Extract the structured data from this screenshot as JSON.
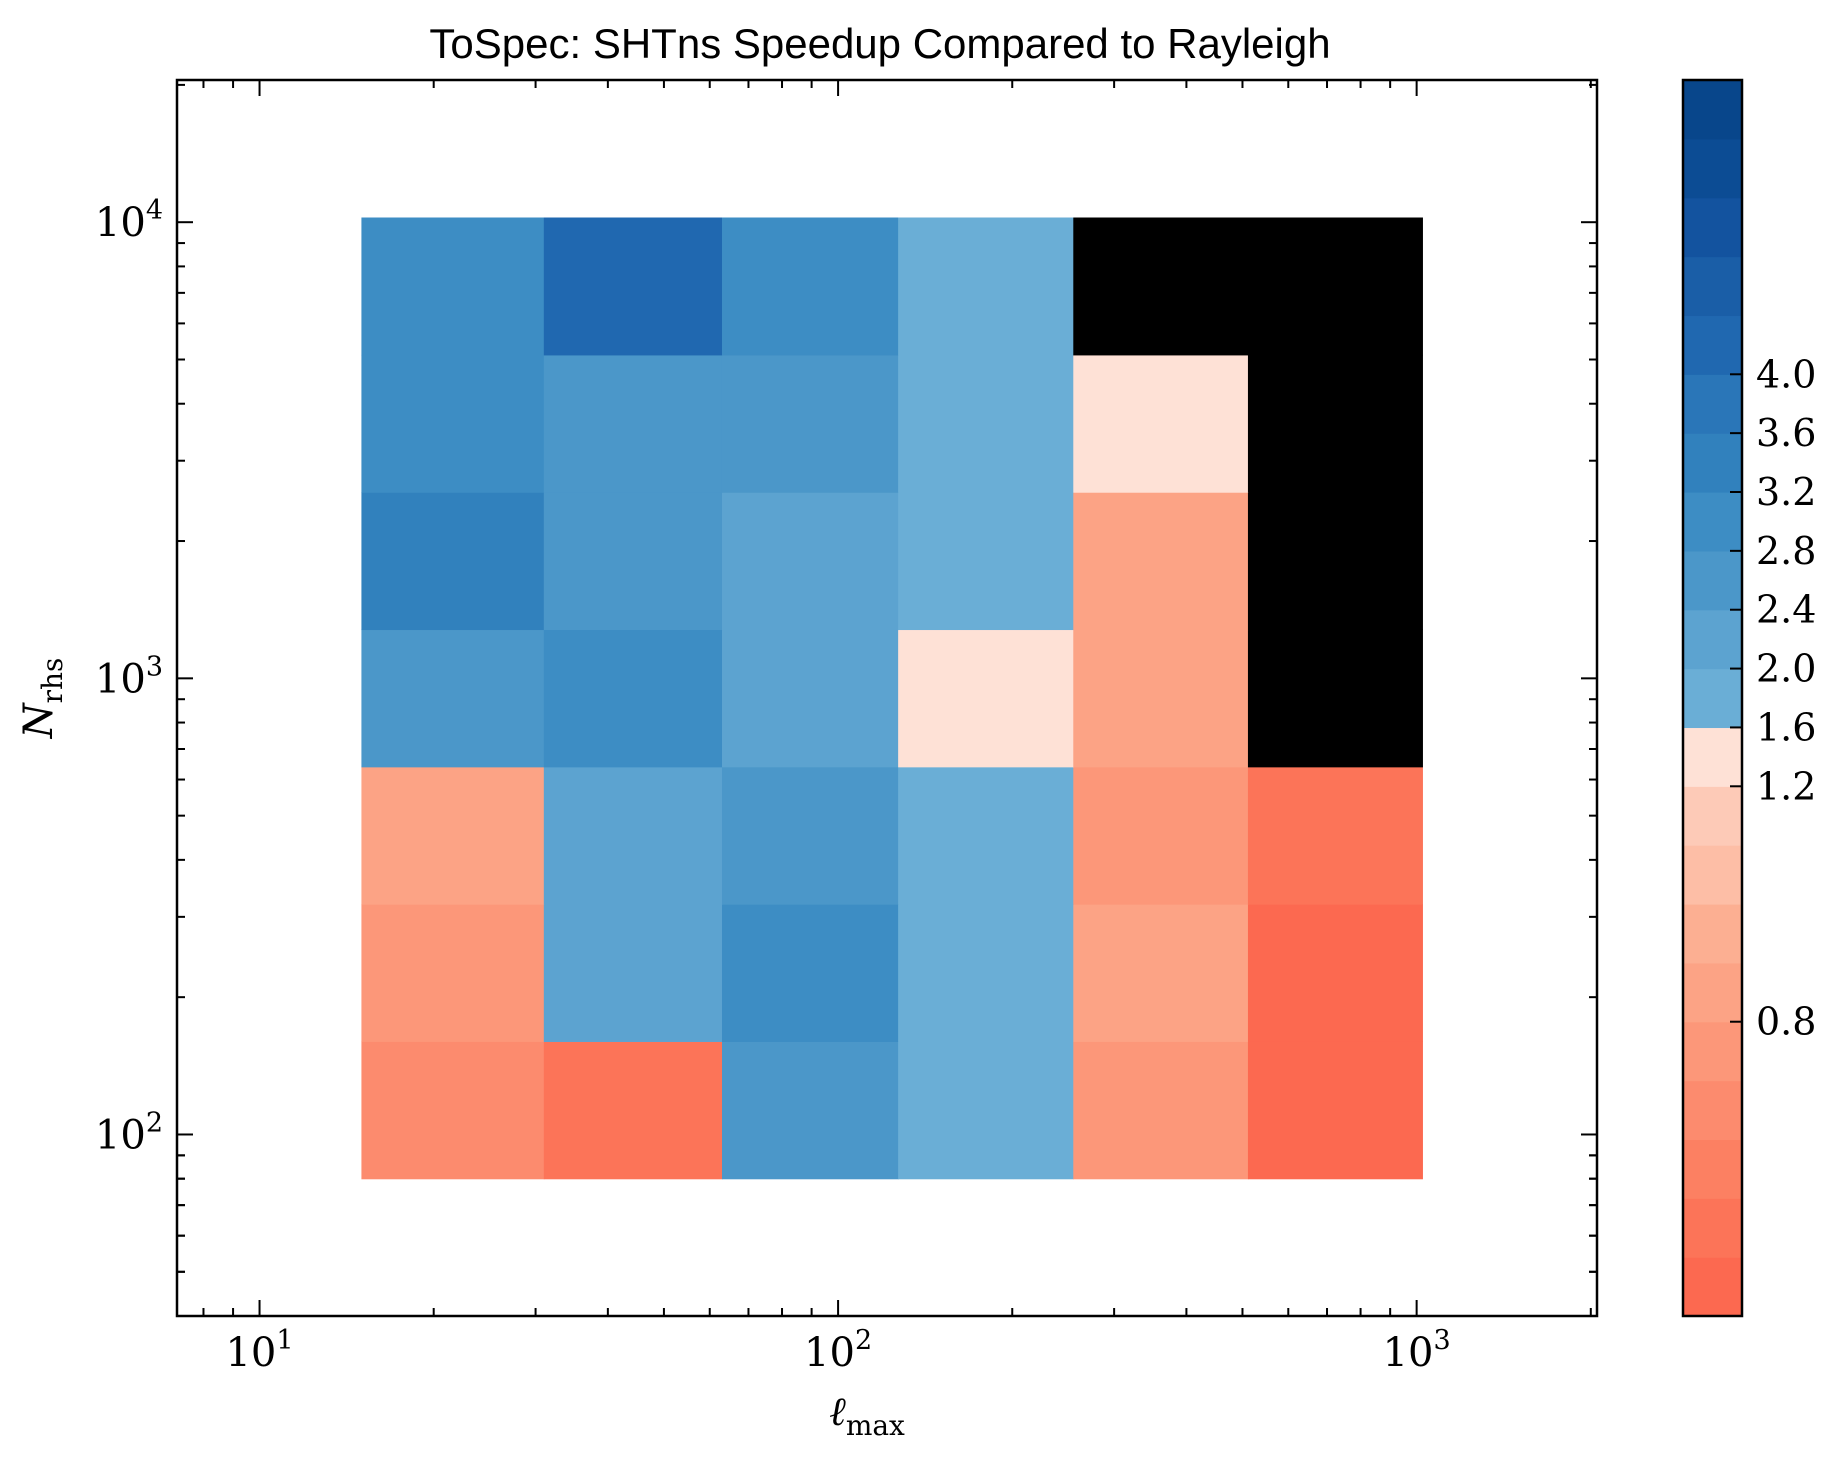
{
  "chart_data": {
    "type": "heatmap",
    "title": "ToSpec: SHTns Speedup Compared to Rayleigh",
    "xlabel": {
      "main": "ℓ",
      "sub": "max"
    },
    "ylabel": {
      "main": "N",
      "sub": "rhs"
    },
    "x_scale": "log",
    "y_scale": "log",
    "xlim": [
      7.2,
      2050
    ],
    "ylim": [
      40,
      20500
    ],
    "x_ticks": [
      {
        "value": 10,
        "base": "10",
        "exp": "1"
      },
      {
        "value": 100,
        "base": "10",
        "exp": "2"
      },
      {
        "value": 1000,
        "base": "10",
        "exp": "3"
      }
    ],
    "y_ticks": [
      {
        "value": 100,
        "base": "10",
        "exp": "2"
      },
      {
        "value": 1000,
        "base": "10",
        "exp": "3"
      },
      {
        "value": 10000,
        "base": "10",
        "exp": "4"
      }
    ],
    "x_edges": [
      15,
      31,
      63,
      127,
      255,
      511,
      1023
    ],
    "y_edges": [
      80,
      160,
      320,
      640,
      1280,
      2560,
      5120,
      10240
    ],
    "values": [
      [
        0.6,
        0.45,
        2.5,
        1.6,
        0.7,
        0.3
      ],
      [
        0.7,
        2.3,
        3.0,
        1.6,
        0.85,
        0.3
      ],
      [
        0.8,
        2.3,
        2.6,
        1.6,
        0.75,
        0.4
      ],
      [
        2.6,
        3.0,
        2.1,
        1.3,
        0.85,
        null
      ],
      [
        3.4,
        2.6,
        2.1,
        1.9,
        0.8,
        null
      ],
      [
        3.0,
        2.6,
        2.6,
        1.6,
        1.3,
        null
      ],
      [
        3.0,
        4.0,
        3.0,
        1.8,
        null,
        null
      ]
    ],
    "missing_color": "#000000",
    "colorbar": {
      "levels": [
        0.3,
        0.4,
        0.5,
        0.6,
        0.7,
        0.8,
        0.9,
        1.0,
        1.1,
        1.2,
        1.6,
        2.0,
        2.4,
        2.8,
        3.2,
        3.6,
        4.0,
        4.4
      ],
      "colors": [
        "#fc6950",
        "#fc7458",
        "#fc8062",
        "#fc8b6e",
        "#fc9779",
        "#fca385",
        "#fcaf92",
        "#fdbea6",
        "#fdcab7",
        "#fee1d6",
        "#6aaed6",
        "#5ca3d0",
        "#4b97c9",
        "#3d8dc4",
        "#3181bd",
        "#2a76b8",
        "#2068b0",
        "#1a5ea7",
        "#13539f",
        "#0c4c94",
        "#08468b"
      ],
      "ticks": [
        0.8,
        1.2,
        1.6,
        2.0,
        2.4,
        2.8,
        3.2,
        3.6,
        4.0
      ],
      "tick_labels": [
        "0.8",
        "1.2",
        "1.6",
        "2.0",
        "2.4",
        "2.8",
        "3.2",
        "3.6",
        "4.0"
      ]
    },
    "legend": "none",
    "grid": false
  }
}
